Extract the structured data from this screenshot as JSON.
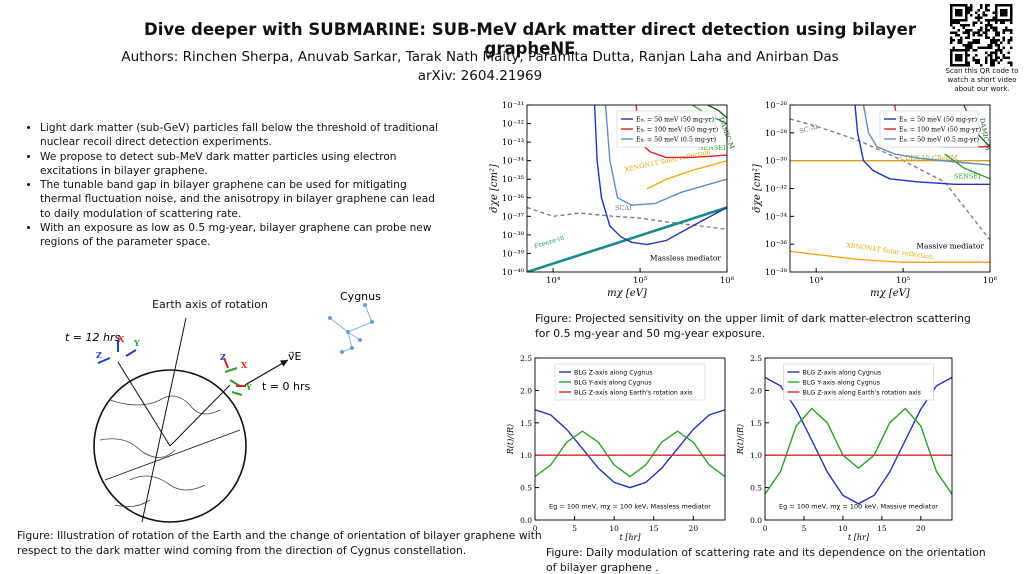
{
  "header": {
    "title": "Dive deeper with SUBMARINE: SUB-MeV dArk matter direct detection using bilayer grapheNE",
    "authors": "Authors: Rinchen Sherpa, Anuvab Sarkar, Tarak Nath Maity, Paramita Dutta, Ranjan Laha and Anirban Das",
    "arxiv": "arXiv: 2604.21969",
    "qr_note": "Scan this QR code to watch a short video about our work."
  },
  "bullets": [
    "Light dark matter (sub-GeV) particles fall below the threshold of traditional nuclear recoil direct detection experiments.",
    "We propose to detect sub-MeV dark matter particles using electron excitations in bilayer graphene.",
    " The tunable band gap in bilayer graphene can be used for mitigating thermal fluctuation noise, and the anisotropy in bilayer graphene can lead to daily modulation of scattering rate.",
    "With an exposure as low as 0.5 mg-year, bilayer graphene can probe new regions of the parameter space."
  ],
  "diagram": {
    "axis_label": "Earth axis of rotation",
    "t12": "t = 12 hrs",
    "t0": "t = 0 hrs",
    "velocity": "v⃗E",
    "constellation": "Cygnus",
    "frame_left": [
      "Z",
      "X",
      "Y"
    ],
    "frame_right": [
      "Z",
      "X",
      "Y"
    ]
  },
  "captions": {
    "diagram": "Figure: Illustration of rotation of the Earth and the change of orientation of bilayer graphene with respect to the dark matter wind coming from the direction of Cygnus constellation.",
    "sensitivity": "Figure: Projected sensitivity on the upper limit of dark matter-electron scattering for 0.5 mg-year and 50 mg-year exposure.",
    "modulation": "Figure: Daily modulation of scattering rate and its dependence on the orientation of bilayer graphene ."
  },
  "chart_data": [
    {
      "type": "line",
      "xlog": true,
      "ylog": true,
      "x_label": "mχ [eV]",
      "y_label": "σ̄χe [cm²]",
      "xlim": [
        5000,
        1000000
      ],
      "ylim": [
        1e-40,
        1e-31
      ],
      "xticks": [
        {
          "value": 10000,
          "label": "10⁴"
        },
        {
          "value": 100000,
          "label": "10⁵"
        },
        {
          "value": 1000000,
          "label": "10⁶"
        }
      ],
      "yticks": [
        {
          "value": 1e-40,
          "label": "10⁻⁴⁰"
        },
        {
          "value": 1e-39,
          "label": "10⁻³⁹"
        },
        {
          "value": 1e-38,
          "label": "10⁻³⁸"
        },
        {
          "value": 1e-37,
          "label": "10⁻³⁷"
        },
        {
          "value": 1e-36,
          "label": "10⁻³⁶"
        },
        {
          "value": 1e-35,
          "label": "10⁻³⁵"
        },
        {
          "value": 1e-34,
          "label": "10⁻³⁴"
        },
        {
          "value": 1e-33,
          "label": "10⁻³³"
        },
        {
          "value": 1e-32,
          "label": "10⁻³²"
        },
        {
          "value": 1e-31,
          "label": "10⁻³¹"
        }
      ],
      "legend": "upper right",
      "series": [
        {
          "name": "Eₜₕ = 50 meV (50 mg-yr)",
          "color": "#2233bb",
          "x": [
            30000,
            32000,
            36000,
            45000,
            60000,
            80000,
            120000,
            200000,
            400000,
            1000000
          ],
          "values": [
            1e-31,
            1e-34,
            1e-36,
            3e-38,
            8e-39,
            4e-39,
            3e-39,
            5e-39,
            3e-38,
            3e-37
          ]
        },
        {
          "name": "Eₜₕ = 100 meV (50 mg-yr)",
          "color": "#d62728",
          "x": [
            90000,
            100000,
            130000,
            200000,
            400000,
            1000000
          ],
          "values": [
            1e-31,
            1e-33,
            3e-34,
            1.5e-34,
            1.5e-34,
            2e-34
          ]
        },
        {
          "name": "Eₜₕ = 50 meV (0.5 mg-yr)",
          "color": "#5b8fc0",
          "x": [
            40000,
            45000,
            55000,
            80000,
            150000,
            300000,
            1000000
          ],
          "values": [
            1e-31,
            1e-34,
            1e-36,
            4e-37,
            5e-37,
            2e-36,
            1e-35
          ]
        }
      ],
      "curves": [
        {
          "label": "XENON1T Solar reflection",
          "color": "#f0a30a",
          "x": [
            120000,
            200000,
            400000,
            1000000
          ],
          "values": [
            3e-36,
            1e-35,
            3e-35,
            1e-34
          ]
        },
        {
          "label": "SCAI",
          "color": "#777777",
          "style": "dashed",
          "x": [
            5000,
            10000,
            20000,
            50000,
            100000,
            200000,
            500000,
            1000000
          ],
          "values": [
            3e-37,
            1e-37,
            1.5e-37,
            1e-37,
            8e-38,
            5e-38,
            3e-38,
            2e-38
          ]
        },
        {
          "label": "Freeze-in",
          "color": "#1a8a8a",
          "x": [
            5000,
            1000000
          ],
          "values": [
            1e-40,
            3e-37
          ]
        },
        {
          "label": "SENSEI",
          "color": "#2ca02c",
          "x": [
            400000,
            600000,
            1000000
          ],
          "values": [
            1e-31,
            3e-32,
            1e-32
          ]
        },
        {
          "label": "DAMIC-M",
          "color": "#1b5e20",
          "x": [
            600000,
            800000,
            1000000
          ],
          "values": [
            1e-31,
            5e-32,
            2e-32
          ]
        }
      ],
      "annotation": "Massless mediator"
    },
    {
      "type": "line",
      "xlog": true,
      "ylog": true,
      "x_label": "mχ [eV]",
      "y_label": "σ̄χe [cm²]",
      "xlim": [
        5000,
        1000000
      ],
      "ylim": [
        1e-38,
        1e-26
      ],
      "xticks": [
        {
          "value": 10000,
          "label": "10⁴"
        },
        {
          "value": 100000,
          "label": "10⁵"
        },
        {
          "value": 1000000,
          "label": "10⁶"
        }
      ],
      "yticks": [
        {
          "value": 1e-38,
          "label": "10⁻³⁸"
        },
        {
          "value": 1e-36,
          "label": "10⁻³⁶"
        },
        {
          "value": 1e-34,
          "label": "10⁻³⁴"
        },
        {
          "value": 1e-32,
          "label": "10⁻³²"
        },
        {
          "value": 1e-30,
          "label": "10⁻³⁰"
        },
        {
          "value": 1e-28,
          "label": "10⁻²⁸"
        },
        {
          "value": 1e-26,
          "label": "10⁻²⁶"
        }
      ],
      "legend": "upper right",
      "series": [
        {
          "name": "Eₜₕ = 50 meV (50 mg-yr)",
          "color": "#2233bb",
          "x": [
            28000,
            30000,
            35000,
            45000,
            70000,
            150000,
            400000,
            1000000
          ],
          "values": [
            1e-26,
            1e-28,
            1e-30,
            2e-31,
            5e-32,
            3e-32,
            2e-32,
            2e-32
          ]
        },
        {
          "name": "Eₜₕ = 100 meV (50 mg-yr)",
          "color": "#d62728",
          "x": [
            80000,
            90000,
            110000,
            150000,
            300000,
            1000000
          ],
          "values": [
            1e-26,
            1e-28,
            3e-29,
            1.5e-29,
            1e-29,
            1e-29
          ]
        },
        {
          "name": "Eₜₕ = 50 meV (0.5 mg-yr)",
          "color": "#5b8fc0",
          "x": [
            35000,
            40000,
            50000,
            80000,
            150000,
            400000,
            1000000
          ],
          "values": [
            1e-26,
            1e-28,
            1e-29,
            3e-30,
            1.5e-30,
            8e-31,
            5e-31
          ]
        }
      ],
      "curves": [
        {
          "label": "SC-AI",
          "color": "#777777",
          "style": "dashed",
          "x": [
            5000,
            10000,
            30000,
            100000,
            300000,
            1000000
          ],
          "values": [
            1e-27,
            3e-28,
            3e-29,
            1e-30,
            3e-32,
            2e-36
          ]
        },
        {
          "label": "CDEX-10 CReDM",
          "color": "#d4a017",
          "x": [
            5000,
            1000000
          ],
          "values": [
            1e-30,
            1e-30
          ]
        },
        {
          "label": "SENSEI",
          "color": "#2ca02c",
          "x": [
            300000,
            500000,
            1000000
          ],
          "values": [
            3e-30,
            3e-31,
            5e-32
          ]
        },
        {
          "label": "DAMIC-M",
          "color": "#1b5e20",
          "x": [
            500000,
            700000,
            1000000
          ],
          "values": [
            1e-26,
            1e-28,
            1e-29
          ]
        },
        {
          "label": "XENON1T Solar reflection",
          "color": "#f0a30a",
          "x": [
            5000,
            30000,
            100000,
            300000,
            1000000
          ],
          "values": [
            3e-37,
            8e-38,
            5e-38,
            5e-38,
            5e-38
          ]
        }
      ],
      "annotation": "Massive mediator"
    },
    {
      "type": "line",
      "x_label": "t [hr]",
      "y_label": "R(t)/⟨R⟩",
      "xlim": [
        0,
        24
      ],
      "ylim": [
        0,
        2.5
      ],
      "xticks": [
        0,
        5,
        10,
        15,
        20
      ],
      "yticks": [
        {
          "value": 0,
          "label": "0.0"
        },
        {
          "value": 0.5,
          "label": "0.5"
        },
        {
          "value": 1,
          "label": "1.0"
        },
        {
          "value": 1.5,
          "label": "1.5"
        },
        {
          "value": 2,
          "label": "2.0"
        },
        {
          "value": 2.5,
          "label": "2.5"
        }
      ],
      "legend": "upper center",
      "series": [
        {
          "name": "BLG Z-axis along Cygnus",
          "color": "#2233bb",
          "x": [
            0,
            2,
            4,
            6,
            8,
            10,
            12,
            14,
            16,
            18,
            20,
            22,
            24
          ],
          "values": [
            1.7,
            1.62,
            1.4,
            1.1,
            0.8,
            0.58,
            0.5,
            0.58,
            0.8,
            1.1,
            1.4,
            1.62,
            1.7
          ]
        },
        {
          "name": "BLG Y-axis along Cygnus",
          "color": "#2ca02c",
          "x": [
            0,
            2,
            4,
            6,
            8,
            10,
            12,
            14,
            16,
            18,
            20,
            22,
            24
          ],
          "values": [
            0.67,
            0.85,
            1.2,
            1.37,
            1.2,
            0.85,
            0.67,
            0.85,
            1.2,
            1.37,
            1.2,
            0.85,
            0.67
          ]
        },
        {
          "name": "BLG Z-axis along Earth's rotation axis",
          "color": "#d62728",
          "x": [
            0,
            24
          ],
          "values": [
            1,
            1
          ]
        }
      ],
      "annotation": "Eg = 100 meV, mχ = 100 keV, Massless mediator"
    },
    {
      "type": "line",
      "x_label": "t [hr]",
      "y_label": "R(t)/⟨R⟩",
      "xlim": [
        0,
        24
      ],
      "ylim": [
        0,
        2.5
      ],
      "xticks": [
        0,
        5,
        10,
        15,
        20
      ],
      "yticks": [
        {
          "value": 0,
          "label": "0.0"
        },
        {
          "value": 0.5,
          "label": "0.5"
        },
        {
          "value": 1,
          "label": "1.0"
        },
        {
          "value": 1.5,
          "label": "1.5"
        },
        {
          "value": 2,
          "label": "2.0"
        },
        {
          "value": 2.5,
          "label": "2.5"
        }
      ],
      "legend": "upper center",
      "series": [
        {
          "name": "BLG Z-axis along Cygnus",
          "color": "#2233bb",
          "x": [
            0,
            2,
            4,
            6,
            8,
            10,
            12,
            14,
            16,
            18,
            20,
            22,
            24
          ],
          "values": [
            2.2,
            2.07,
            1.71,
            1.23,
            0.74,
            0.38,
            0.25,
            0.38,
            0.74,
            1.23,
            1.71,
            2.07,
            2.2
          ]
        },
        {
          "name": "BLG Y-axis along Cygnus",
          "color": "#2ca02c",
          "x": [
            0,
            2,
            4,
            6,
            8,
            10,
            12,
            14,
            16,
            18,
            20,
            22,
            24
          ],
          "values": [
            0.4,
            0.75,
            1.45,
            1.72,
            1.5,
            1.0,
            0.8,
            1.0,
            1.5,
            1.72,
            1.45,
            0.75,
            0.4
          ]
        },
        {
          "name": "BLG Z-axis along Earth's rotation axis",
          "color": "#d62728",
          "x": [
            0,
            24
          ],
          "values": [
            1,
            1
          ]
        }
      ],
      "annotation": "Eg = 100 meV, mχ = 100 keV, Massive mediator"
    }
  ]
}
